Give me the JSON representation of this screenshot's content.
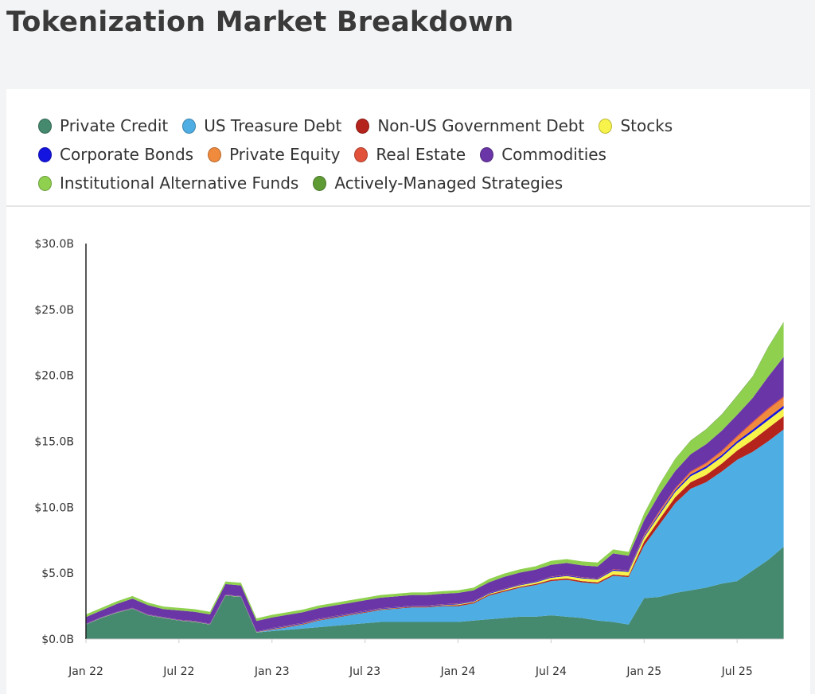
{
  "page": {
    "title": "Tokenization Market Breakdown"
  },
  "chart_data": {
    "type": "area",
    "stacked": true,
    "title": "",
    "xlabel": "",
    "ylabel": "",
    "ylim": [
      0,
      30
    ],
    "grid": false,
    "legend_position": "top",
    "y_ticks": [
      "$0.0B",
      "$5.0B",
      "$10.0B",
      "$15.0B",
      "$20.0B",
      "$25.0B",
      "$30.0B"
    ],
    "y_tick_values": [
      0,
      5,
      10,
      15,
      20,
      25,
      30
    ],
    "x_ticks": [
      "Jan 22",
      "Jul 22",
      "Jan 23",
      "Jul 23",
      "Jan 24",
      "Jul 24",
      "Jan 25",
      "Jul 25"
    ],
    "x_tick_values": [
      "2022-01",
      "2022-07",
      "2023-01",
      "2023-07",
      "2024-01",
      "2024-07",
      "2025-01",
      "2025-07"
    ],
    "x": [
      "2022-01",
      "2022-02",
      "2022-03",
      "2022-04",
      "2022-05",
      "2022-06",
      "2022-07",
      "2022-08",
      "2022-09",
      "2022-10",
      "2022-11",
      "2022-12",
      "2023-01",
      "2023-02",
      "2023-03",
      "2023-04",
      "2023-05",
      "2023-06",
      "2023-07",
      "2023-08",
      "2023-09",
      "2023-10",
      "2023-11",
      "2023-12",
      "2024-01",
      "2024-02",
      "2024-03",
      "2024-04",
      "2024-05",
      "2024-06",
      "2024-07",
      "2024-08",
      "2024-09",
      "2024-10",
      "2024-11",
      "2024-12",
      "2025-01",
      "2025-02",
      "2025-03",
      "2025-04",
      "2025-05",
      "2025-06",
      "2025-07",
      "2025-08",
      "2025-09",
      "2025-10"
    ],
    "series": [
      {
        "name": "Private Credit",
        "color": "#45896f",
        "values": [
          1.1,
          1.6,
          2.0,
          2.3,
          1.8,
          1.6,
          1.4,
          1.3,
          1.1,
          3.3,
          3.2,
          0.5,
          0.6,
          0.7,
          0.8,
          0.9,
          1.0,
          1.1,
          1.2,
          1.3,
          1.3,
          1.3,
          1.3,
          1.3,
          1.3,
          1.4,
          1.5,
          1.6,
          1.7,
          1.7,
          1.8,
          1.7,
          1.6,
          1.4,
          1.3,
          1.1,
          3.1,
          3.2,
          3.5,
          3.7,
          3.9,
          4.2,
          4.4,
          5.2,
          6.0,
          7.0
        ]
      },
      {
        "name": "US Treasure Debt",
        "color": "#4eaee3",
        "values": [
          0,
          0,
          0,
          0,
          0,
          0,
          0,
          0,
          0,
          0,
          0,
          0,
          0.1,
          0.2,
          0.3,
          0.5,
          0.6,
          0.7,
          0.8,
          0.9,
          1.0,
          1.1,
          1.1,
          1.2,
          1.2,
          1.3,
          1.8,
          2.0,
          2.2,
          2.4,
          2.6,
          2.8,
          2.7,
          2.8,
          3.5,
          3.6,
          4.0,
          5.5,
          6.8,
          7.7,
          8.0,
          8.5,
          9.2,
          9.0,
          9.0,
          8.9
        ]
      },
      {
        "name": "Non-US Government Debt",
        "color": "#b5241c",
        "values": [
          0,
          0,
          0,
          0,
          0,
          0,
          0,
          0,
          0,
          0,
          0,
          0,
          0.05,
          0.05,
          0.05,
          0.05,
          0.05,
          0.05,
          0.05,
          0.05,
          0.05,
          0.05,
          0.05,
          0.05,
          0.08,
          0.08,
          0.08,
          0.08,
          0.08,
          0.08,
          0.1,
          0.1,
          0.1,
          0.1,
          0.1,
          0.1,
          0.3,
          0.4,
          0.45,
          0.5,
          0.55,
          0.6,
          0.7,
          0.9,
          1.0,
          1.0
        ]
      },
      {
        "name": "Stocks",
        "color": "#f7f34a",
        "values": [
          0.02,
          0.02,
          0.02,
          0.02,
          0.02,
          0.02,
          0.02,
          0.02,
          0.02,
          0.02,
          0.02,
          0.02,
          0.02,
          0.02,
          0.02,
          0.02,
          0.02,
          0.02,
          0.02,
          0.02,
          0.02,
          0.02,
          0.02,
          0.02,
          0.05,
          0.05,
          0.06,
          0.08,
          0.1,
          0.12,
          0.15,
          0.18,
          0.2,
          0.22,
          0.28,
          0.3,
          0.3,
          0.35,
          0.4,
          0.45,
          0.5,
          0.5,
          0.55,
          0.6,
          0.6,
          0.6
        ]
      },
      {
        "name": "Corporate Bonds",
        "color": "#1414e0",
        "values": [
          0.03,
          0.03,
          0.03,
          0.03,
          0.03,
          0.03,
          0.03,
          0.03,
          0.03,
          0.03,
          0.03,
          0.03,
          0.05,
          0.05,
          0.05,
          0.05,
          0.05,
          0.05,
          0.05,
          0.05,
          0.05,
          0.05,
          0.05,
          0.05,
          0.05,
          0.05,
          0.05,
          0.05,
          0.05,
          0.05,
          0.06,
          0.06,
          0.06,
          0.06,
          0.08,
          0.08,
          0.1,
          0.12,
          0.12,
          0.14,
          0.15,
          0.15,
          0.16,
          0.18,
          0.2,
          0.2
        ]
      },
      {
        "name": "Private Equity",
        "color": "#f08a3c",
        "values": [
          0,
          0,
          0,
          0,
          0,
          0,
          0,
          0,
          0,
          0,
          0,
          0,
          0,
          0,
          0,
          0,
          0,
          0,
          0,
          0,
          0,
          0,
          0,
          0,
          0,
          0,
          0,
          0,
          0,
          0,
          0,
          0,
          0,
          0,
          0,
          0,
          0.05,
          0.1,
          0.1,
          0.15,
          0.2,
          0.25,
          0.3,
          0.5,
          0.6,
          0.6
        ]
      },
      {
        "name": "Real Estate",
        "color": "#e2523a",
        "values": [
          0.02,
          0.02,
          0.02,
          0.02,
          0.02,
          0.02,
          0.02,
          0.02,
          0.02,
          0.02,
          0.02,
          0.02,
          0.02,
          0.02,
          0.02,
          0.02,
          0.02,
          0.02,
          0.02,
          0.02,
          0.02,
          0.02,
          0.02,
          0.02,
          0.02,
          0.02,
          0.02,
          0.02,
          0.02,
          0.02,
          0.03,
          0.03,
          0.03,
          0.03,
          0.04,
          0.04,
          0.05,
          0.06,
          0.07,
          0.08,
          0.08,
          0.09,
          0.1,
          0.1,
          0.1,
          0.1
        ]
      },
      {
        "name": "Commodities",
        "color": "#6a35a6",
        "values": [
          0.5,
          0.5,
          0.6,
          0.7,
          0.7,
          0.6,
          0.7,
          0.7,
          0.7,
          0.8,
          0.8,
          0.8,
          0.8,
          0.8,
          0.8,
          0.8,
          0.8,
          0.8,
          0.8,
          0.8,
          0.8,
          0.8,
          0.8,
          0.8,
          0.8,
          0.8,
          0.8,
          0.9,
          0.9,
          0.9,
          0.9,
          0.9,
          0.9,
          0.9,
          1.2,
          1.1,
          1.1,
          1.3,
          1.3,
          1.3,
          1.4,
          1.5,
          1.6,
          1.8,
          2.4,
          3.0
        ]
      },
      {
        "name": "Institutional Alternative Funds",
        "color": "#8fd14f",
        "values": [
          0.2,
          0.2,
          0.2,
          0.2,
          0.2,
          0.2,
          0.2,
          0.2,
          0.2,
          0.2,
          0.2,
          0.2,
          0.2,
          0.2,
          0.2,
          0.2,
          0.2,
          0.2,
          0.2,
          0.2,
          0.2,
          0.2,
          0.2,
          0.2,
          0.2,
          0.2,
          0.25,
          0.25,
          0.25,
          0.25,
          0.3,
          0.3,
          0.3,
          0.3,
          0.3,
          0.3,
          0.5,
          0.7,
          0.9,
          1.0,
          1.1,
          1.2,
          1.4,
          1.6,
          2.2,
          2.6
        ]
      },
      {
        "name": "Actively-Managed Strategies",
        "color": "#5f9b35",
        "values": [
          0,
          0,
          0,
          0,
          0,
          0,
          0,
          0,
          0,
          0,
          0,
          0,
          0,
          0,
          0,
          0,
          0,
          0,
          0,
          0,
          0,
          0,
          0,
          0,
          0,
          0,
          0,
          0,
          0,
          0,
          0,
          0,
          0,
          0,
          0,
          0,
          0.02,
          0.03,
          0.03,
          0.04,
          0.04,
          0.05,
          0.05,
          0.05,
          0.05,
          0.05
        ]
      }
    ]
  }
}
